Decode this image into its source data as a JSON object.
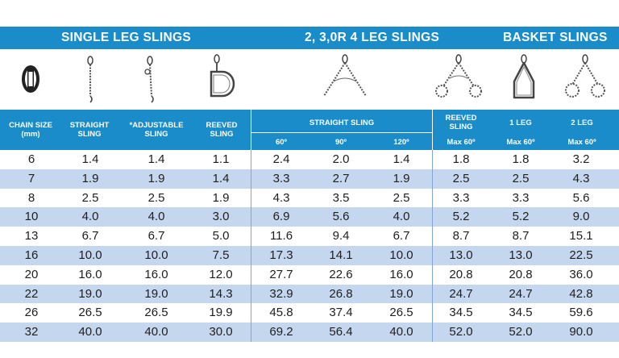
{
  "headers": {
    "single_leg": "SINGLE LEG SLINGS",
    "multi_leg": "2, 3,0R 4 LEG SLINGS",
    "basket": "BASKET SLINGS"
  },
  "icons": [
    "chain-link-icon",
    "straight-sling-icon",
    "adjustable-sling-icon",
    "reeved-sling-icon",
    "two-leg-sling-icon",
    "reeved-two-leg-sling-icon",
    "basket-one-leg-icon",
    "basket-two-leg-icon"
  ],
  "columns": {
    "chain_size": "CHAIN SIZE\n(mm)",
    "straight": "STRAIGHT\nSLING",
    "adjustable": "*ADJUSTABLE\nSLING",
    "reeved": "REEVED\nSLING",
    "straight_sling_group": "STRAIGHT SLING",
    "angle_60": "60º",
    "angle_90": "90º",
    "angle_120": "120º",
    "reeved_multi": "REEVED\nSLING",
    "reeved_multi_sub": "Max 60º",
    "one_leg": "1 LEG",
    "one_leg_sub": "Max 60º",
    "two_leg": "2 LEG",
    "two_leg_sub": "Max 60º"
  },
  "rows": [
    [
      "6",
      "1.4",
      "1.4",
      "1.1",
      "2.4",
      "2.0",
      "1.4",
      "1.8",
      "1.8",
      "3.2"
    ],
    [
      "7",
      "1.9",
      "1.9",
      "1.4",
      "3.3",
      "2.7",
      "1.9",
      "2.5",
      "2.5",
      "4.3"
    ],
    [
      "8",
      "2.5",
      "2.5",
      "1.9",
      "4.3",
      "3.5",
      "2.5",
      "3.3",
      "3.3",
      "5.6"
    ],
    [
      "10",
      "4.0",
      "4.0",
      "3.0",
      "6.9",
      "5.6",
      "4.0",
      "5.2",
      "5.2",
      "9.0"
    ],
    [
      "13",
      "6.7",
      "6.7",
      "5.0",
      "11.6",
      "9.4",
      "6.7",
      "8.7",
      "8.7",
      "15.1"
    ],
    [
      "16",
      "10.0",
      "10.0",
      "7.5",
      "17.3",
      "14.1",
      "10.0",
      "13.0",
      "13.0",
      "22.5"
    ],
    [
      "20",
      "16.0",
      "16.0",
      "12.0",
      "27.7",
      "22.6",
      "16.0",
      "20.8",
      "20.8",
      "36.0"
    ],
    [
      "22",
      "19.0",
      "19.0",
      "14.3",
      "32.9",
      "26.8",
      "19.0",
      "24.7",
      "24.7",
      "42.8"
    ],
    [
      "26",
      "26.5",
      "26.5",
      "19.9",
      "45.8",
      "37.4",
      "26.5",
      "34.5",
      "34.5",
      "59.6"
    ],
    [
      "32",
      "40.0",
      "40.0",
      "30.0",
      "69.2",
      "56.4",
      "40.0",
      "52.0",
      "52.0",
      "90.0"
    ]
  ],
  "colors": {
    "band": "#1a8cc9",
    "alt_row": "#c5d7ee"
  }
}
